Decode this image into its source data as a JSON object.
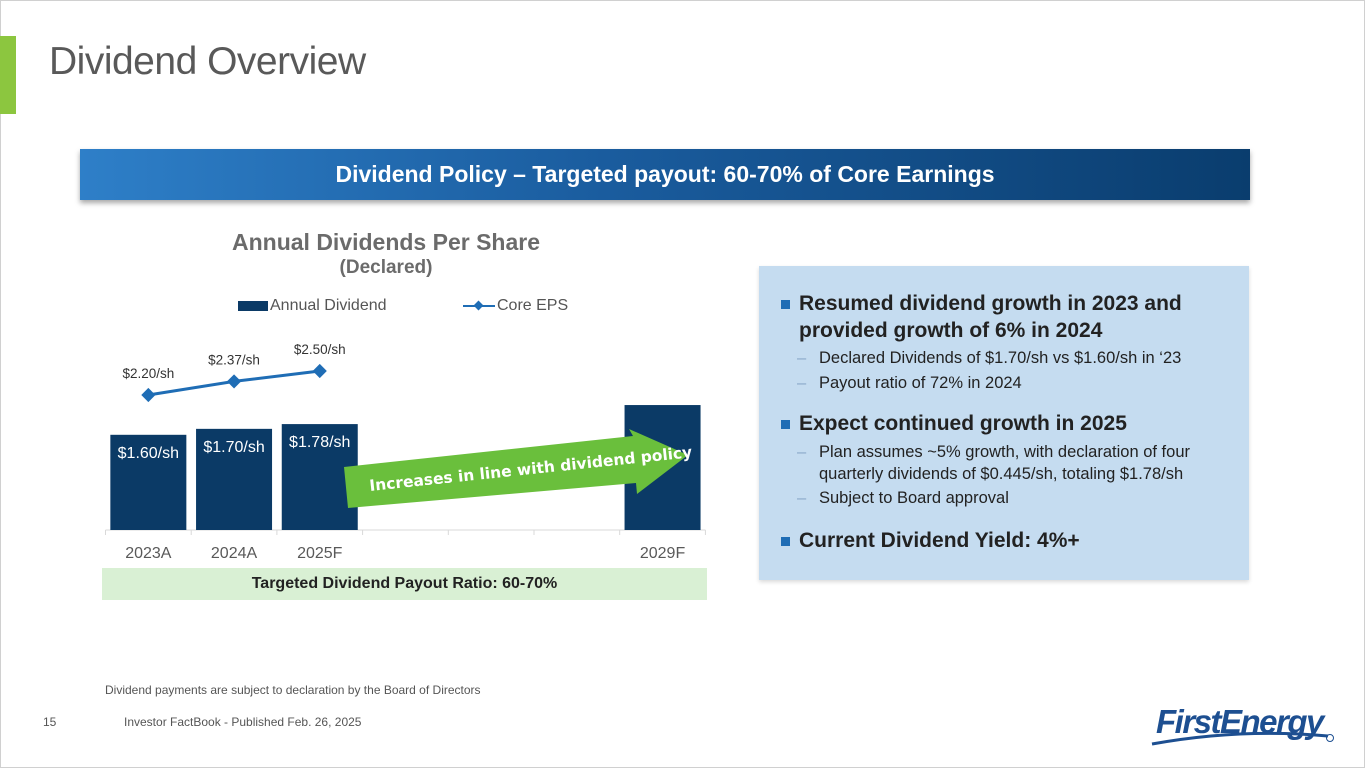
{
  "page": {
    "title": "Dividend Overview",
    "banner": "Dividend Policy – Targeted payout: 60-70% of Core Earnings",
    "footnote": "Dividend payments are subject to declaration by the Board of Directors",
    "page_number": "15",
    "footer": "Investor FactBook - Published Feb. 26, 2025",
    "logo_text": "FirstEnergy"
  },
  "colors": {
    "accent_green": "#8cc63f",
    "bar_navy": "#0b3a66",
    "eps_line_blue": "#1f6db5",
    "arrow_green": "#6abf3c",
    "panel_blue": "#c5dcf0",
    "payout_green": "#d9f0d4"
  },
  "chart_data": {
    "type": "bar",
    "title": "Annual Dividends Per Share",
    "subtitle": "(Declared)",
    "categories": [
      "2023A",
      "2024A",
      "2025F",
      "",
      "",
      "",
      "2029F"
    ],
    "series": [
      {
        "name": "Annual Dividend",
        "type": "bar",
        "values": [
          1.6,
          1.7,
          1.78,
          null,
          null,
          null,
          2.1
        ],
        "labels": [
          "$1.60/sh",
          "$1.70/sh",
          "$1.78/sh",
          "",
          "",
          "",
          ""
        ]
      },
      {
        "name": "Core EPS",
        "type": "line",
        "values": [
          2.2,
          2.37,
          2.5,
          null,
          null,
          null,
          null
        ],
        "labels": [
          "$2.20/sh",
          "$2.37/sh",
          "$2.50/sh",
          "",
          "",
          "",
          ""
        ]
      }
    ],
    "annotation": "Increases in line with dividend policy",
    "payout_ratio_label": "Targeted Dividend Payout Ratio: 60-70%",
    "legend": "top",
    "grid": false
  },
  "panel": {
    "bullets": [
      {
        "text": "Resumed dividend growth in 2023 and provided growth of 6% in 2024",
        "subs": [
          "Declared Dividends of $1.70/sh vs $1.60/sh in ‘23",
          "Payout ratio of 72% in 2024"
        ]
      },
      {
        "text": "Expect continued growth in 2025",
        "subs": [
          "Plan assumes ~5% growth, with declaration of four quarterly dividends of $0.445/sh, totaling $1.78/sh",
          "Subject to Board approval"
        ]
      },
      {
        "text": "Current Dividend Yield: 4%+",
        "subs": []
      }
    ]
  }
}
